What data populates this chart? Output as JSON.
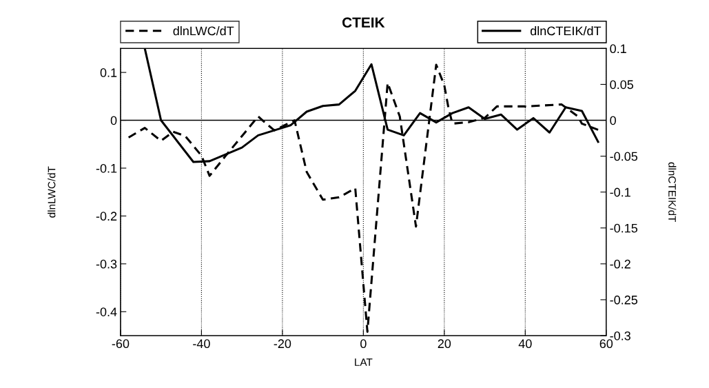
{
  "chart_data": {
    "type": "line",
    "title": "CTEIK",
    "xlabel": "LAT",
    "ylabel": "dlnLWC/dT",
    "y2label": "dlnCTEIK/dT",
    "xlim": [
      -60,
      60
    ],
    "xticks": [
      -60,
      -40,
      -20,
      0,
      20,
      40,
      60
    ],
    "ylim": [
      -0.45,
      0.15
    ],
    "yticks": [
      -0.4,
      -0.3,
      -0.2,
      -0.1,
      0,
      0.1
    ],
    "y2lim": [
      -0.3,
      0.1
    ],
    "y2ticks": [
      -0.3,
      -0.25,
      -0.2,
      -0.15,
      -0.1,
      -0.05,
      0,
      0.05,
      0.1
    ],
    "grid": "x",
    "legend": "top",
    "marker": "none",
    "ref_lines": [
      {
        "axis": "y",
        "value": 0,
        "color": "#000000",
        "line_style": "solid"
      }
    ],
    "series": [
      {
        "name": "dlnLWC/dT",
        "color": "#000000",
        "line_style": "dashed",
        "x": [
          -58,
          -54,
          -50,
          -47,
          -44,
          -40,
          -38,
          -34,
          -30,
          -26,
          -24,
          -22,
          -17,
          -14,
          -10,
          -6,
          -2,
          1,
          6,
          9,
          13,
          18,
          20,
          21,
          22,
          26,
          30,
          33,
          40,
          49,
          53,
          54,
          58
        ],
        "values": [
          -0.036,
          -0.016,
          -0.043,
          -0.024,
          -0.033,
          -0.074,
          -0.116,
          -0.074,
          -0.033,
          0.008,
          -0.007,
          -0.021,
          0,
          -0.108,
          -0.166,
          -0.161,
          -0.142,
          -0.442,
          0.078,
          0.008,
          -0.222,
          0.116,
          0.073,
          0.027,
          -0.007,
          -0.004,
          0.005,
          0.029,
          0.029,
          0.033,
          0.008,
          -0.007,
          -0.02
        ]
      },
      {
        "name": "dlnCTEIK/dT",
        "color": "#000000",
        "line_style": "solid",
        "axis": "y2",
        "x": [
          -54,
          -50,
          -42,
          -38,
          -30,
          -26,
          -22,
          -18,
          -14,
          -10,
          -6,
          -2,
          2,
          6,
          10,
          14,
          18,
          22,
          26,
          30,
          34,
          38,
          42,
          46,
          50,
          54,
          58
        ],
        "values": [
          0.1,
          0,
          -0.058,
          -0.057,
          -0.038,
          -0.021,
          -0.014,
          -0.007,
          0.012,
          0.02,
          0.022,
          0.041,
          0.078,
          -0.013,
          -0.021,
          0.01,
          -0.003,
          0.01,
          0.018,
          0.002,
          0.008,
          -0.013,
          0.003,
          -0.017,
          0.018,
          0.013,
          -0.03
        ]
      }
    ]
  }
}
